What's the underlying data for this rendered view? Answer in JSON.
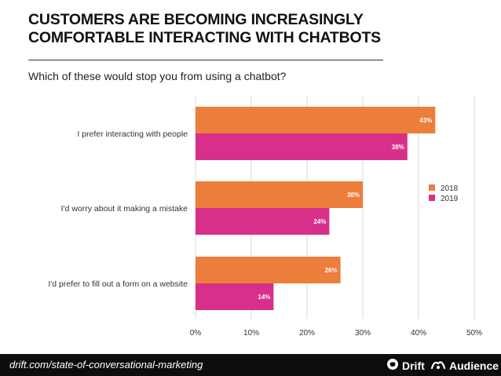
{
  "header": {
    "title_line1": "CUSTOMERS ARE BECOMING INCREASINGLY",
    "title_line2": "COMFORTABLE INTERACTING WITH CHATBOTS",
    "question": "Which of these would stop you from using a chatbot?"
  },
  "chart_data": {
    "type": "bar",
    "orientation": "horizontal",
    "categories": [
      "I prefer interacting with people",
      "I'd worry about it making a mistake",
      "I'd prefer to fill out a form on a website"
    ],
    "series": [
      {
        "name": "2018",
        "values": [
          43,
          30,
          26
        ],
        "labels": [
          "43%",
          "30%",
          "26%"
        ],
        "color": "#ED7D3A"
      },
      {
        "name": "2019",
        "values": [
          38,
          24,
          14
        ],
        "labels": [
          "38%",
          "24%",
          "14%"
        ],
        "color": "#D8308A"
      }
    ],
    "xlim": [
      0,
      50
    ],
    "ticks": [
      0,
      10,
      20,
      30,
      40,
      50
    ],
    "tick_labels": [
      "0%",
      "10%",
      "20%",
      "30%",
      "40%",
      "50%"
    ],
    "grid": true,
    "legend_position": "right"
  },
  "footer": {
    "url": "drift.com/state-of-conversational-marketing",
    "brand1": "Drift",
    "brand2": "Audience"
  }
}
